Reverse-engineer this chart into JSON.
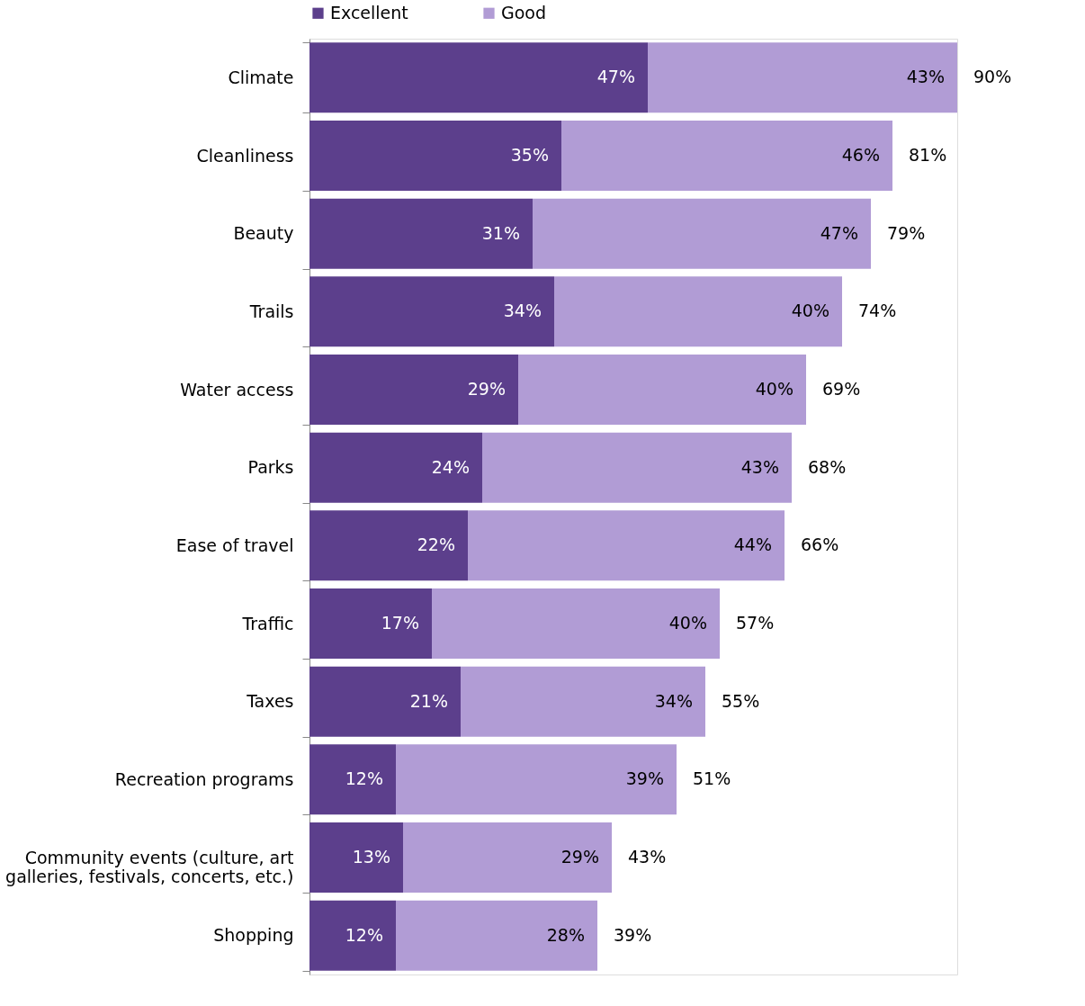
{
  "chart_data": {
    "type": "bar",
    "orientation": "horizontal",
    "stacked": true,
    "legend": "top",
    "categories": [
      "Climate",
      "Cleanliness",
      "Beauty",
      "Trails",
      "Water access",
      "Parks",
      "Ease of travel",
      "Traffic",
      "Taxes",
      "Recreation programs",
      "Community events (culture, art\ngalleries, festivals, concerts, etc.)",
      "Shopping"
    ],
    "series": [
      {
        "name": "Excellent",
        "color": "#5c3f8c",
        "values": [
          47,
          35,
          31,
          34,
          29,
          24,
          22,
          17,
          21,
          12,
          13,
          12
        ],
        "value_labels": [
          "47%",
          "35%",
          "31%",
          "34%",
          "29%",
          "24%",
          "22%",
          "17%",
          "21%",
          "12%",
          "13%",
          "12%"
        ]
      },
      {
        "name": "Good",
        "color": "#b19cd5",
        "values": [
          43,
          46,
          47,
          40,
          40,
          43,
          44,
          40,
          34,
          39,
          29,
          28
        ],
        "value_labels": [
          "43%",
          "46%",
          "47%",
          "40%",
          "40%",
          "43%",
          "44%",
          "40%",
          "34%",
          "39%",
          "29%",
          "28%"
        ]
      }
    ],
    "totals": [
      "90%",
      "81%",
      "79%",
      "74%",
      "69%",
      "68%",
      "66%",
      "57%",
      "55%",
      "51%",
      "43%",
      "39%"
    ]
  }
}
